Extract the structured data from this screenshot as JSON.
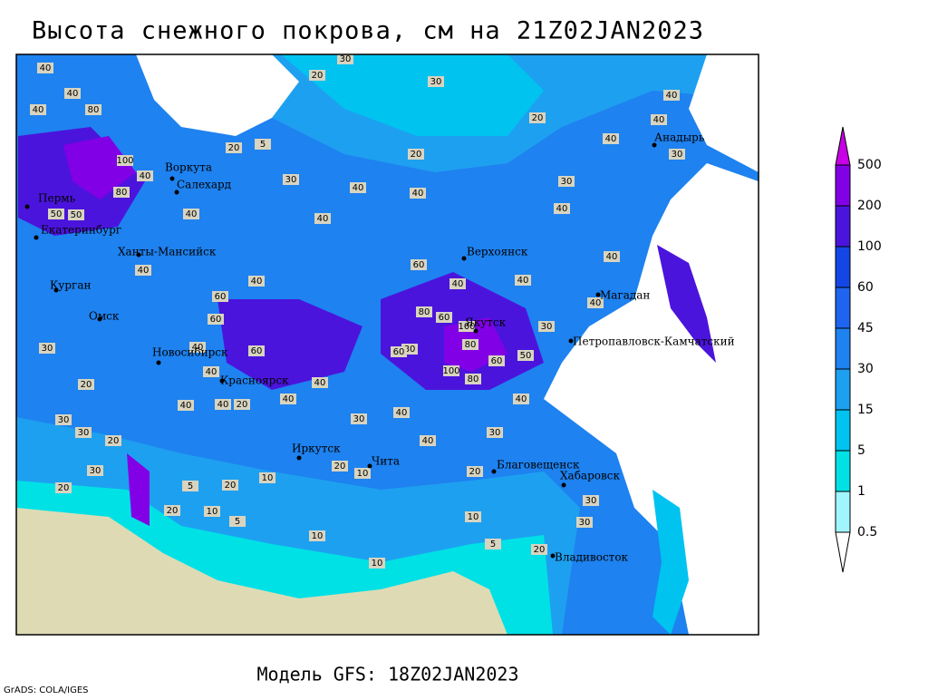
{
  "title": "Высота снежного покрова, см на 21Z02JAN2023",
  "subtitle": "Модель GFS: 18Z02JAN2023",
  "credit": "GrADS: COLA/IGES",
  "colorbar": {
    "levels": [
      0.5,
      1,
      5,
      15,
      30,
      45,
      60,
      100,
      200,
      500
    ],
    "colors": [
      "#ffffff",
      "#a0f5ff",
      "#00e1e6",
      "#00c3f0",
      "#1ea0f0",
      "#1e82f0",
      "#1e64f0",
      "#1446e6",
      "#4b14dc",
      "#8200e6",
      "#c800e6"
    ]
  },
  "cities": [
    "Воркута",
    "Салехард",
    "Пермь",
    "Екатеринбург",
    "Ханты-Мансийск",
    "Курган",
    "Омск",
    "Новосибирск",
    "Красноярск",
    "Иркутск",
    "Чита",
    "Благовещенск",
    "Хабаровск",
    "Владивосток",
    "Якутск",
    "Верхоянск",
    "Магадан",
    "Петропавловск-Камчатский",
    "Анадырь"
  ],
  "contour_labels": [
    40,
    40,
    40,
    80,
    100,
    80,
    40,
    50,
    50,
    40,
    60,
    60,
    30,
    40,
    60,
    40,
    40,
    40,
    20,
    40,
    40,
    20,
    30,
    30,
    20,
    30,
    20,
    5,
    20,
    10,
    10,
    5,
    20,
    10,
    20,
    10,
    30,
    40,
    40,
    30,
    20,
    20,
    30,
    30,
    5,
    10,
    10,
    60,
    80,
    60,
    100,
    80,
    80,
    60,
    100,
    80,
    60,
    40,
    30,
    50,
    40,
    40,
    40,
    40,
    40,
    40,
    30,
    20,
    20,
    30,
    20,
    30,
    40,
    40,
    30,
    40,
    5,
    20,
    40,
    40,
    40,
    30,
    40
  ]
}
